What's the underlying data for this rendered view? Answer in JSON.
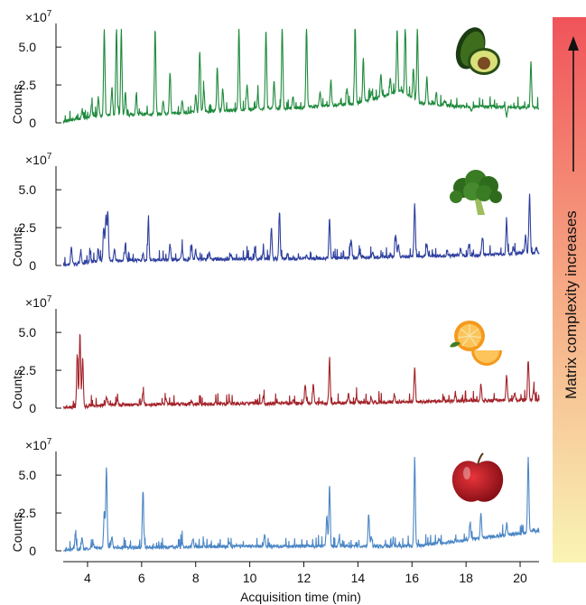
{
  "chart_data": {
    "type": "line",
    "x_axis": {
      "label": "Acquisition time (min)",
      "range": [
        3.1,
        20.7
      ],
      "ticks": [
        "4",
        "6",
        "8",
        "10",
        "12",
        "14",
        "16",
        "18",
        "20"
      ]
    },
    "y_axis": {
      "label": "Counts",
      "multiplier": "×10",
      "multiplier_exponent": "7",
      "ticks": [
        "0",
        "2.5",
        "5.0"
      ],
      "range": [
        0,
        6.2
      ]
    },
    "grid": false,
    "legend": "none",
    "panels": [
      {
        "color": "#1e8a3c",
        "icon": "avocado-icon",
        "baseline": [
          [
            3.1,
            0.1
          ],
          [
            4.5,
            0.5
          ],
          [
            7,
            0.6
          ],
          [
            10,
            0.9
          ],
          [
            12,
            1.0
          ],
          [
            14,
            1.3
          ],
          [
            15.6,
            2.1
          ],
          [
            16.3,
            1.3
          ],
          [
            17.5,
            1.1
          ],
          [
            20.7,
            1.0
          ]
        ],
        "peaks": [
          [
            3.8,
            0.9
          ],
          [
            4.15,
            1.2
          ],
          [
            4.4,
            1.7
          ],
          [
            4.62,
            6.2
          ],
          [
            4.9,
            2.3
          ],
          [
            5.07,
            6.2
          ],
          [
            5.25,
            6.2
          ],
          [
            5.4,
            2.0
          ],
          [
            5.8,
            1.8
          ],
          [
            6.5,
            6.2
          ],
          [
            6.8,
            1.5
          ],
          [
            7.05,
            3.2
          ],
          [
            7.5,
            1.5
          ],
          [
            8.0,
            1.8
          ],
          [
            8.15,
            4.8
          ],
          [
            8.3,
            2.3
          ],
          [
            8.8,
            3.6
          ],
          [
            9.0,
            2.2
          ],
          [
            9.6,
            6.2
          ],
          [
            9.9,
            2.6
          ],
          [
            10.3,
            1.9
          ],
          [
            10.6,
            6.2
          ],
          [
            10.9,
            2.8
          ],
          [
            11.2,
            6.2
          ],
          [
            11.6,
            1.7
          ],
          [
            12.1,
            6.2
          ],
          [
            12.6,
            2.1
          ],
          [
            13.0,
            2.8
          ],
          [
            13.6,
            2.3
          ],
          [
            13.9,
            6.2
          ],
          [
            14.2,
            4.2
          ],
          [
            14.5,
            2.1
          ],
          [
            14.85,
            3.2
          ],
          [
            15.2,
            2.9
          ],
          [
            15.45,
            6.2
          ],
          [
            15.75,
            6.2
          ],
          [
            16.05,
            3.6
          ],
          [
            16.2,
            6.2
          ],
          [
            16.55,
            3.0
          ],
          [
            16.9,
            2.0
          ],
          [
            17.2,
            1.5
          ],
          [
            18.2,
            0.8
          ],
          [
            19.5,
            0.4
          ],
          [
            20.4,
            4.0
          ]
        ]
      },
      {
        "color": "#2e3f9e",
        "icon": "broccoli-icon",
        "baseline": [
          [
            3.1,
            0
          ],
          [
            4.5,
            0.3
          ],
          [
            8,
            0.4
          ],
          [
            12,
            0.45
          ],
          [
            16,
            0.6
          ],
          [
            18,
            0.65
          ],
          [
            20.7,
            0.85
          ]
        ],
        "peaks": [
          [
            3.4,
            1.2
          ],
          [
            3.75,
            1.0
          ],
          [
            4.1,
            0.8
          ],
          [
            4.4,
            1.0
          ],
          [
            4.6,
            2.6
          ],
          [
            4.68,
            3.2
          ],
          [
            4.75,
            3.6
          ],
          [
            5.0,
            1.0
          ],
          [
            5.4,
            1.4
          ],
          [
            6.05,
            0.8
          ],
          [
            6.25,
            2.9
          ],
          [
            7.05,
            1.4
          ],
          [
            7.5,
            1.2
          ],
          [
            7.85,
            1.4
          ],
          [
            8.0,
            1.0
          ],
          [
            8.5,
            0.9
          ],
          [
            9.3,
            0.7
          ],
          [
            9.9,
            0.7
          ],
          [
            10.2,
            0.9
          ],
          [
            10.5,
            1.0
          ],
          [
            10.8,
            2.5
          ],
          [
            11.1,
            3.6
          ],
          [
            11.4,
            0.8
          ],
          [
            12.1,
            0.7
          ],
          [
            12.95,
            3.1
          ],
          [
            13.75,
            1.7
          ],
          [
            14.05,
            0.8
          ],
          [
            14.55,
            0.8
          ],
          [
            15.4,
            2.0
          ],
          [
            15.5,
            1.4
          ],
          [
            16.1,
            4.1
          ],
          [
            16.55,
            1.4
          ],
          [
            17.3,
            1.0
          ],
          [
            17.8,
            1.1
          ],
          [
            18.1,
            1.3
          ],
          [
            18.6,
            1.8
          ],
          [
            19.5,
            3.0
          ],
          [
            19.75,
            1.2
          ],
          [
            20.2,
            2.0
          ],
          [
            20.35,
            4.8
          ],
          [
            20.6,
            1.2
          ]
        ]
      },
      {
        "color": "#a3232a",
        "icon": "orange-icon",
        "baseline": [
          [
            3.1,
            0
          ],
          [
            4.5,
            0.2
          ],
          [
            10,
            0.3
          ],
          [
            14,
            0.35
          ],
          [
            17,
            0.45
          ],
          [
            20.7,
            0.55
          ]
        ],
        "peaks": [
          [
            3.62,
            3.6
          ],
          [
            3.72,
            5.0
          ],
          [
            3.82,
            3.3
          ],
          [
            4.7,
            0.8
          ],
          [
            5.1,
            0.6
          ],
          [
            6.05,
            1.0
          ],
          [
            6.9,
            0.6
          ],
          [
            7.85,
            0.5
          ],
          [
            9.25,
            0.4
          ],
          [
            10.5,
            0.7
          ],
          [
            11.6,
            0.5
          ],
          [
            12.05,
            1.6
          ],
          [
            12.35,
            1.6
          ],
          [
            12.95,
            3.1
          ],
          [
            13.65,
            1.0
          ],
          [
            13.95,
            0.8
          ],
          [
            14.5,
            0.6
          ],
          [
            15.35,
            0.9
          ],
          [
            16.1,
            2.6
          ],
          [
            17.6,
            0.9
          ],
          [
            18.55,
            1.6
          ],
          [
            19.5,
            2.2
          ],
          [
            19.8,
            1.1
          ],
          [
            20.3,
            3.2
          ],
          [
            20.5,
            1.2
          ]
        ]
      },
      {
        "color": "#4b86c5",
        "icon": "apple-icon",
        "baseline": [
          [
            3.1,
            0
          ],
          [
            4.5,
            0.2
          ],
          [
            10,
            0.3
          ],
          [
            16,
            0.3
          ],
          [
            17.5,
            0.6
          ],
          [
            20.7,
            1.3
          ]
        ],
        "peaks": [
          [
            3.55,
            1.2
          ],
          [
            3.8,
            0.9
          ],
          [
            4.2,
            0.6
          ],
          [
            4.62,
            2.6
          ],
          [
            4.7,
            5.5
          ],
          [
            4.9,
            0.9
          ],
          [
            6.05,
            3.9
          ],
          [
            7.5,
            0.6
          ],
          [
            7.9,
            0.8
          ],
          [
            8.3,
            0.5
          ],
          [
            9.25,
            0.6
          ],
          [
            10.55,
            1.1
          ],
          [
            12.85,
            2.3
          ],
          [
            12.95,
            4.3
          ],
          [
            13.3,
            0.8
          ],
          [
            14.4,
            2.4
          ],
          [
            14.5,
            1.0
          ],
          [
            15.3,
            0.7
          ],
          [
            16.1,
            6.2
          ],
          [
            17.0,
            0.8
          ],
          [
            18.15,
            1.9
          ],
          [
            18.55,
            2.5
          ],
          [
            19.5,
            1.7
          ],
          [
            20.3,
            6.2
          ],
          [
            20.5,
            1.4
          ]
        ]
      }
    ]
  },
  "side_bar": {
    "label": "Matrix complexity increases",
    "gradient_top": "#f0535a",
    "gradient_bottom": "#f9f4b4"
  }
}
